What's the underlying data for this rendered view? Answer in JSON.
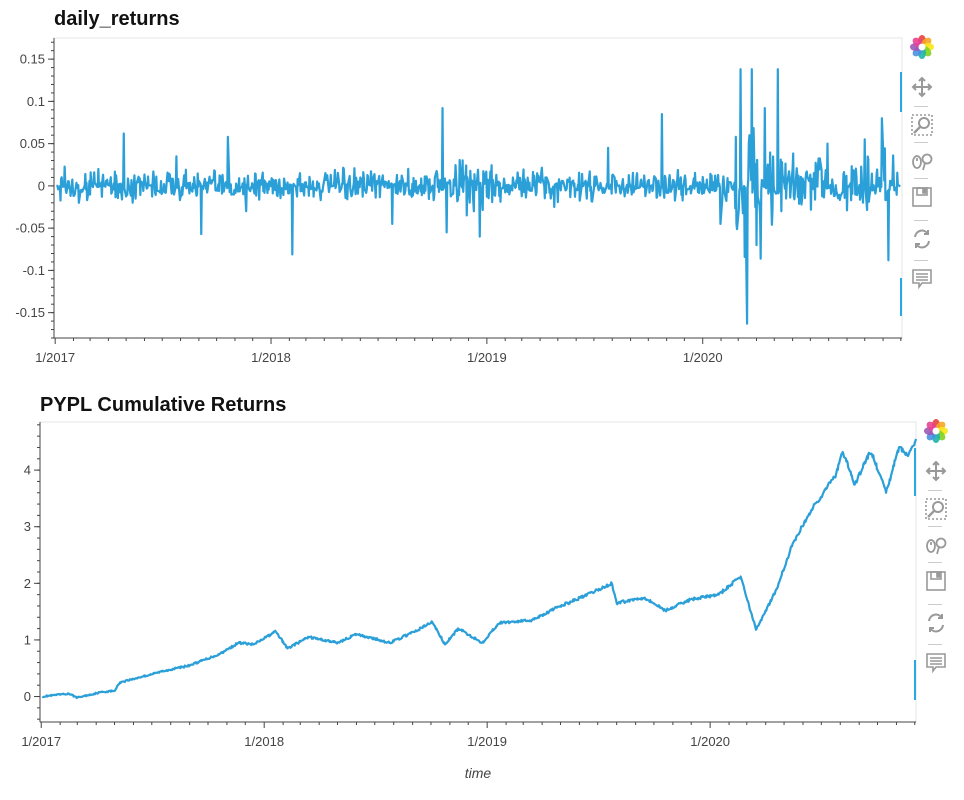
{
  "plots": [
    {
      "title": "daily_returns",
      "x_tick_labels": [
        "1/2017",
        "1/2018",
        "1/2019",
        "1/2020"
      ],
      "y_tick_labels": [
        "0.15",
        "0.1",
        "0.05",
        "0",
        "-0.05",
        "-0.1",
        "-0.15"
      ],
      "x_axis_label": "",
      "toolbar": [
        "bokeh-logo-icon",
        "pan-icon",
        "box-zoom-icon",
        "wheel-zoom-icon",
        "save-icon",
        "reset-icon",
        "hover-icon"
      ]
    },
    {
      "title": "PYPL Cumulative Returns",
      "x_tick_labels": [
        "1/2017",
        "1/2018",
        "1/2019",
        "1/2020"
      ],
      "y_tick_labels": [
        "4",
        "3",
        "2",
        "1",
        "0"
      ],
      "x_axis_label": "time",
      "toolbar": [
        "bokeh-logo-icon",
        "pan-icon",
        "box-zoom-icon",
        "wheel-zoom-icon",
        "save-icon",
        "reset-icon",
        "hover-icon"
      ]
    }
  ],
  "colors": {
    "line": "#2a9fd8",
    "axis": "#444444",
    "frame": "#e5e5e5"
  },
  "chart_data": [
    {
      "type": "line",
      "title": "daily_returns",
      "xlabel": "",
      "ylabel": "",
      "x_range": [
        "2016-12-30",
        "2020-12-03"
      ],
      "ylim": [
        -0.18,
        0.175
      ],
      "x_ticks": [
        "1/2017",
        "1/2018",
        "1/2019",
        "1/2020"
      ],
      "y_ticks": [
        0.15,
        0.1,
        0.05,
        0,
        -0.05,
        -0.1,
        -0.15
      ],
      "grid": false,
      "series": [
        {
          "anchors": [
            [
              "2017-01-03",
              0.0
            ],
            [
              "2017-02-10",
              -0.02
            ],
            [
              "2017-03-15",
              0.02
            ],
            [
              "2017-04-27",
              0.062
            ],
            [
              "2017-06-10",
              -0.03
            ],
            [
              "2017-07-25",
              0.035
            ],
            [
              "2017-09-05",
              -0.057
            ],
            [
              "2017-10-20",
              0.058
            ],
            [
              "2017-11-20",
              -0.03
            ],
            [
              "2018-02-06",
              -0.081
            ],
            [
              "2018-04-15",
              0.03
            ],
            [
              "2018-07-25",
              -0.045
            ],
            [
              "2018-10-18",
              0.092
            ],
            [
              "2018-10-25",
              -0.055
            ],
            [
              "2018-12-20",
              -0.06
            ],
            [
              "2019-04-25",
              -0.025
            ],
            [
              "2019-07-25",
              0.045
            ],
            [
              "2019-09-15",
              -0.04
            ],
            [
              "2019-10-24",
              0.085
            ],
            [
              "2020-01-31",
              -0.045
            ],
            [
              "2020-03-05",
              0.138
            ],
            [
              "2020-03-12",
              -0.084
            ],
            [
              "2020-03-16",
              -0.163
            ],
            [
              "2020-03-24",
              0.138
            ],
            [
              "2020-04-15",
              0.092
            ],
            [
              "2020-05-07",
              0.138
            ],
            [
              "2020-07-30",
              0.05
            ],
            [
              "2020-09-05",
              -0.065
            ],
            [
              "2020-10-01",
              0.055
            ],
            [
              "2020-10-30",
              0.08
            ],
            [
              "2020-11-10",
              -0.088
            ],
            [
              "2020-11-28",
              0.045
            ]
          ]
        }
      ]
    },
    {
      "type": "line",
      "title": "PYPL Cumulative Returns",
      "xlabel": "time",
      "ylabel": "",
      "x_range": [
        "2016-12-30",
        "2020-12-03"
      ],
      "ylim": [
        -0.45,
        4.85
      ],
      "x_ticks": [
        "1/2017",
        "1/2018",
        "1/2019",
        "1/2020"
      ],
      "y_ticks": [
        4,
        3,
        2,
        1,
        0
      ],
      "grid": false,
      "series": [
        {
          "points": [
            [
              "2017-01-03",
              0.0
            ],
            [
              "2017-02-15",
              0.05
            ],
            [
              "2017-03-01",
              -0.02
            ],
            [
              "2017-04-10",
              0.08
            ],
            [
              "2017-05-01",
              0.1
            ],
            [
              "2017-05-10",
              0.25
            ],
            [
              "2017-06-15",
              0.35
            ],
            [
              "2017-07-20",
              0.45
            ],
            [
              "2017-09-01",
              0.55
            ],
            [
              "2017-10-20",
              0.75
            ],
            [
              "2017-11-20",
              0.95
            ],
            [
              "2017-12-15",
              0.92
            ],
            [
              "2018-01-20",
              1.15
            ],
            [
              "2018-02-08",
              0.85
            ],
            [
              "2018-03-15",
              1.05
            ],
            [
              "2018-05-01",
              0.95
            ],
            [
              "2018-06-01",
              1.1
            ],
            [
              "2018-07-26",
              0.95
            ],
            [
              "2018-09-05",
              1.15
            ],
            [
              "2018-10-03",
              1.32
            ],
            [
              "2018-10-24",
              0.92
            ],
            [
              "2018-11-15",
              1.2
            ],
            [
              "2018-12-24",
              0.95
            ],
            [
              "2019-01-20",
              1.3
            ],
            [
              "2019-03-15",
              1.35
            ],
            [
              "2019-05-01",
              1.6
            ],
            [
              "2019-06-15",
              1.8
            ],
            [
              "2019-07-24",
              2.0
            ],
            [
              "2019-08-01",
              1.65
            ],
            [
              "2019-09-15",
              1.75
            ],
            [
              "2019-10-20",
              1.52
            ],
            [
              "2019-12-01",
              1.72
            ],
            [
              "2020-01-15",
              1.8
            ],
            [
              "2020-02-20",
              2.12
            ],
            [
              "2020-03-16",
              1.18
            ],
            [
              "2020-04-20",
              1.92
            ],
            [
              "2020-05-15",
              2.7
            ],
            [
              "2020-06-15",
              3.3
            ],
            [
              "2020-07-25",
              3.92
            ],
            [
              "2020-08-05",
              4.32
            ],
            [
              "2020-08-25",
              3.75
            ],
            [
              "2020-09-20",
              4.35
            ],
            [
              "2020-10-15",
              3.6
            ],
            [
              "2020-11-05",
              4.4
            ],
            [
              "2020-11-20",
              4.25
            ],
            [
              "2020-12-03",
              4.55
            ]
          ]
        }
      ]
    }
  ]
}
